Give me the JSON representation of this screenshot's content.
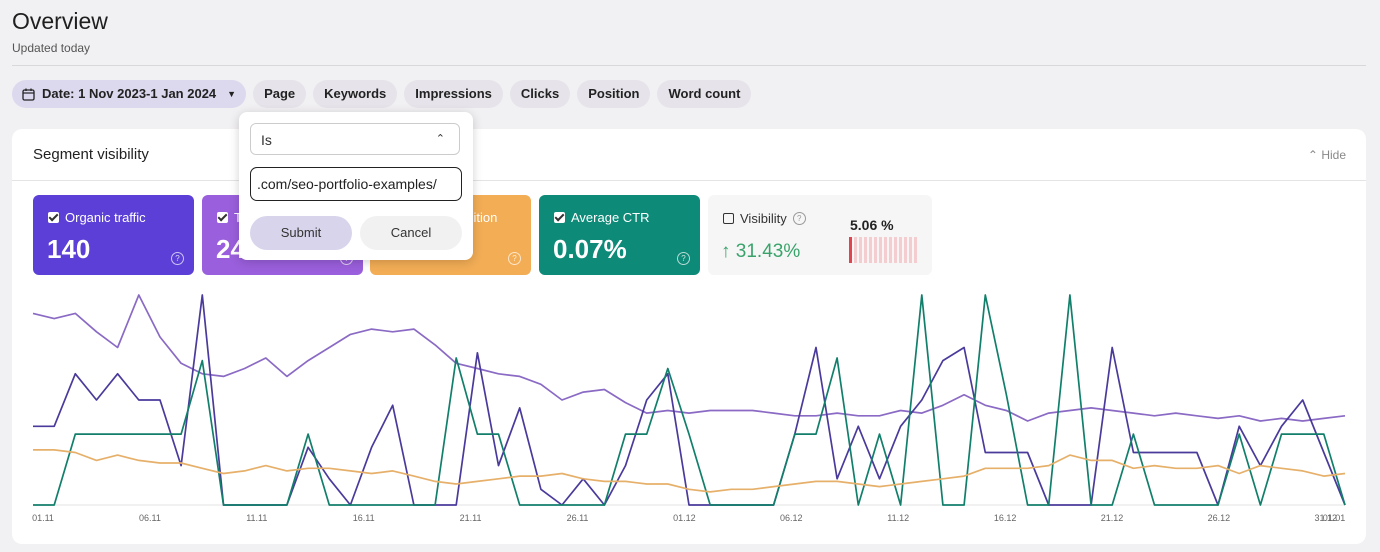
{
  "header": {
    "title": "Overview",
    "subtitle": "Updated today"
  },
  "filters": {
    "date_label": "Date: 1 Nov 2023-1 Jan 2024",
    "chips": [
      "Page",
      "Keywords",
      "Impressions",
      "Clicks",
      "Position",
      "Word count"
    ]
  },
  "panel": {
    "title": "Segment visibility",
    "hide_label": "Hide"
  },
  "metrics": [
    {
      "label": "Organic traffic",
      "value": "140",
      "color": "#5b3fd6"
    },
    {
      "label": "T",
      "value": "24",
      "color": "#9a5fdc"
    },
    {
      "label": "sition",
      "value": "",
      "color": "#f2ad55"
    },
    {
      "label": "Average CTR",
      "value": "0.07%",
      "color": "#0e8a78"
    }
  ],
  "visibility": {
    "label": "Visibility",
    "change": "31.43%",
    "percent": "5.06 %"
  },
  "popup": {
    "operator": "Is",
    "url_value": ".com/seo-portfolio-examples/",
    "submit_label": "Submit",
    "cancel_label": "Cancel"
  },
  "chart_data": {
    "type": "line",
    "x_tick_labels": [
      "01.11",
      "06.11",
      "11.11",
      "16.11",
      "21.11",
      "26.11",
      "01.12",
      "06.12",
      "11.12",
      "16.12",
      "21.12",
      "26.12",
      "31.12",
      "01.01"
    ],
    "series": [
      {
        "color": "#8a6ac4",
        "values": [
          73,
          71,
          73,
          66,
          60,
          80,
          64,
          54,
          50,
          49,
          52,
          56,
          49,
          55,
          60,
          65,
          67,
          66,
          67,
          61,
          54,
          52,
          50,
          49,
          46,
          40,
          43,
          44,
          39,
          35,
          36,
          35,
          36,
          36,
          36,
          35,
          34,
          34,
          35,
          34,
          34,
          36,
          35,
          38,
          42,
          38,
          36,
          32,
          35,
          36,
          37,
          36,
          35,
          34,
          35,
          34,
          33,
          34,
          32,
          33,
          32,
          33,
          34
        ]
      },
      {
        "color": "#4a3a9b",
        "values": [
          30,
          30,
          50,
          40,
          50,
          40,
          40,
          15,
          80,
          0,
          0,
          0,
          0,
          22,
          10,
          0,
          22,
          38,
          0,
          0,
          0,
          58,
          15,
          37,
          6,
          0,
          10,
          0,
          15,
          40,
          50,
          0,
          0,
          0,
          0,
          0,
          27,
          60,
          10,
          30,
          10,
          30,
          40,
          55,
          60,
          20,
          20,
          20,
          0,
          0,
          0,
          60,
          20,
          20,
          20,
          20,
          0,
          30,
          15,
          30,
          40,
          20,
          0
        ]
      },
      {
        "color": "#127f6b",
        "values": [
          0,
          0,
          27,
          27,
          27,
          27,
          27,
          27,
          55,
          0,
          0,
          0,
          0,
          27,
          0,
          0,
          0,
          0,
          0,
          0,
          56,
          27,
          27,
          0,
          0,
          0,
          0,
          0,
          27,
          27,
          52,
          27,
          0,
          0,
          0,
          0,
          27,
          27,
          56,
          0,
          27,
          0,
          80,
          0,
          0,
          80,
          42,
          0,
          0,
          80,
          0,
          0,
          27,
          0,
          0,
          0,
          0,
          27,
          0,
          27,
          27,
          27,
          0
        ]
      },
      {
        "color": "#e6b06a",
        "values": [
          21,
          21,
          20,
          17,
          19,
          17,
          16,
          16,
          14,
          12,
          13,
          15,
          13,
          14,
          14,
          13,
          12,
          13,
          11,
          9,
          8,
          9,
          10,
          11,
          11,
          12,
          10,
          9,
          9,
          8,
          8,
          6,
          5,
          6,
          6,
          7,
          8,
          9,
          9,
          8,
          7,
          8,
          9,
          10,
          11,
          14,
          14,
          14,
          15,
          19,
          17,
          17,
          14,
          15,
          14,
          14,
          15,
          12,
          15,
          14,
          13,
          11,
          12
        ]
      }
    ]
  }
}
